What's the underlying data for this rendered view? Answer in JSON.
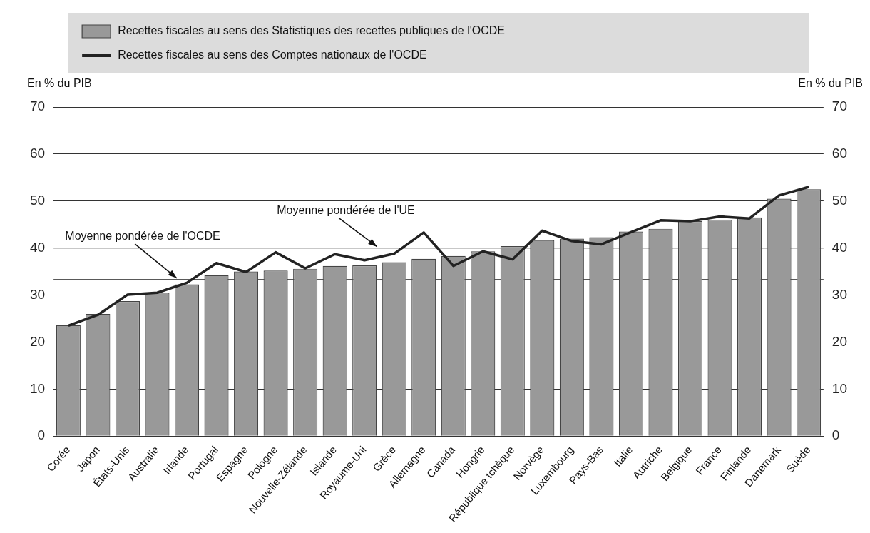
{
  "chart_data": {
    "type": "bar",
    "categories": [
      "Corée",
      "Japon",
      "États-Unis",
      "Australie",
      "Irlande",
      "Portugal",
      "Espagne",
      "Pologne",
      "Nouvelle-Zélande",
      "Islande",
      "Royaume-Uni",
      "Grèce",
      "Allemagne",
      "Canada",
      "Hongrie",
      "République tchèque",
      "Norvège",
      "Luxembourg",
      "Pays-Bas",
      "Italie",
      "Autriche",
      "Belgique",
      "France",
      "Finlande",
      "Danemark",
      "Suède"
    ],
    "series": [
      {
        "name": "Recettes fiscales au sens des Statistiques des recettes publiques de l'OCDE",
        "color": "#999999",
        "values": [
          23.6,
          26.0,
          28.7,
          30.5,
          32.3,
          34.2,
          35.0,
          35.2,
          35.6,
          36.2,
          36.3,
          37.0,
          37.7,
          38.3,
          39.3,
          40.4,
          41.7,
          42.0,
          42.3,
          43.5,
          44.1,
          45.7,
          46.0,
          46.5,
          50.5,
          52.5
        ]
      },
      {
        "name": "Recettes fiscales au sens des Comptes nationaux de l'OCDE",
        "type": "line",
        "color": "#222222",
        "values": [
          23.5,
          25.8,
          30.1,
          30.5,
          32.6,
          36.8,
          34.9,
          39.1,
          35.7,
          38.7,
          37.4,
          38.8,
          43.3,
          36.2,
          39.3,
          37.6,
          43.7,
          41.5,
          40.8,
          43.4,
          45.9,
          45.7,
          46.7,
          46.3,
          51.2,
          53.0
        ]
      }
    ],
    "ylabel": "En % du PIB",
    "y2label": "En % du PIB",
    "ylim": [
      0,
      70
    ],
    "yticks": [
      0,
      10,
      20,
      30,
      40,
      50,
      60,
      70
    ],
    "y2lim": [
      0,
      70
    ],
    "y2ticks": [
      0,
      10,
      20,
      30,
      40,
      50,
      60,
      70
    ],
    "ref_lines": [
      {
        "axis": "y",
        "value": 33.3,
        "label": "Moyenne pondérée de l'OCDE",
        "color": "#222222"
      },
      {
        "axis": "y",
        "value": 40,
        "label": "Moyenne pondérée de l'UE",
        "color": "#222222"
      }
    ],
    "grid": "y",
    "legend": "top",
    "marker": "none",
    "line_style": "solid"
  }
}
